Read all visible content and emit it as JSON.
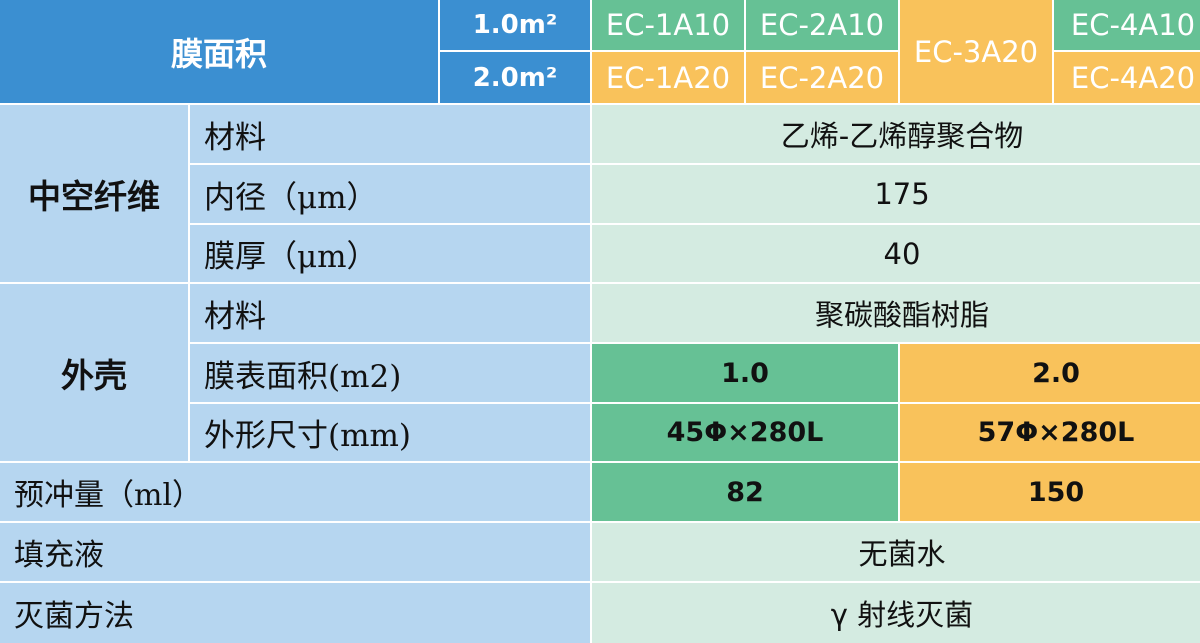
{
  "header": {
    "membrane_area_label": "膜面积",
    "area_1": "1.0m²",
    "area_2": "2.0m²",
    "model_1a10": "EC-1A10",
    "model_2a10": "EC-2A10",
    "model_3a20": "EC-3A20",
    "model_4a10": "EC-4A10",
    "model_1a20": "EC-1A20",
    "model_2a20": "EC-2A20",
    "model_4a20": "EC-4A20"
  },
  "hollow_fiber": {
    "group_label": "中空纤维",
    "material_label": "材料",
    "material_value": "乙烯-乙烯醇聚合物",
    "inner_diameter_label": "内径（μm）",
    "inner_diameter_value": "175",
    "thickness_label": "膜厚（μm）",
    "thickness_value": "40"
  },
  "housing": {
    "group_label": "外壳",
    "material_label": "材料",
    "material_value": "聚碳酸酯树脂",
    "area_label": "膜表面积(m2)",
    "area_value_1": "1.0",
    "area_value_2": "2.0",
    "size_label": "外形尺寸(mm)",
    "size_value_1": "45Φ×280L",
    "size_value_2": "57Φ×280L"
  },
  "priming": {
    "label": "预冲量（ml）",
    "value_1": "82",
    "value_2": "150"
  },
  "filling": {
    "label": "填充液",
    "value": "无菌水"
  },
  "sterilization": {
    "label": "灭菌方法",
    "value": "γ 射线灭菌"
  },
  "colors": {
    "header_blue": "#3b8fd1",
    "label_blue": "#b6d6f0",
    "value_mint": "#d4ebe1",
    "model_green": "#66c195",
    "model_orange": "#f9c25b"
  }
}
